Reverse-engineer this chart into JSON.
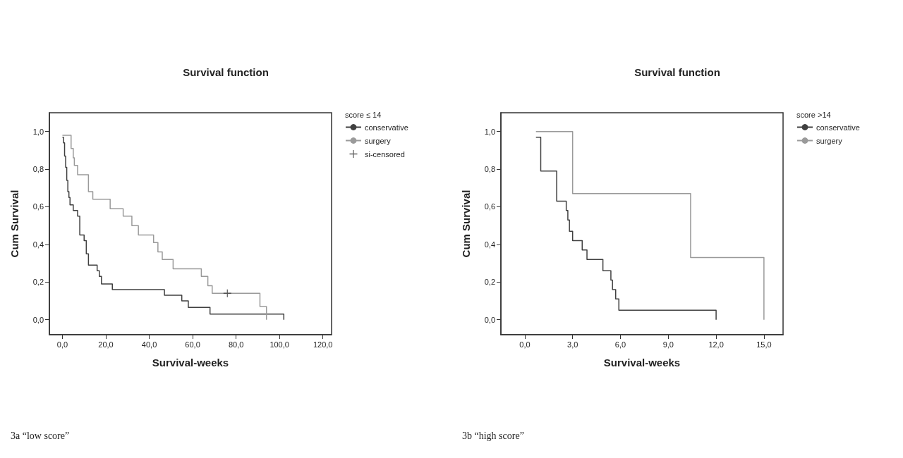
{
  "chart_data": [
    {
      "type": "step",
      "title": "Survival function",
      "xlabel": "Survival-weeks",
      "ylabel": "Cum Survival",
      "legend_title": "score ≤ 14",
      "legend": "right",
      "grid": false,
      "marker": "none",
      "line_style": "solid",
      "xlim": [
        -6,
        124
      ],
      "xticks": [
        {
          "value": 0,
          "label": "0,0"
        },
        {
          "value": 20,
          "label": "20,0"
        },
        {
          "value": 40,
          "label": "40,0"
        },
        {
          "value": 60,
          "label": "60,0"
        },
        {
          "value": 80,
          "label": "80,0"
        },
        {
          "value": 100,
          "label": "100,0"
        },
        {
          "value": 120,
          "label": "120,0"
        }
      ],
      "ylim": [
        -0.08,
        1.1
      ],
      "yticks": [
        {
          "value": 0,
          "label": "0,0"
        },
        {
          "value": 0.2,
          "label": "0,2"
        },
        {
          "value": 0.4,
          "label": "0,4"
        },
        {
          "value": 0.6,
          "label": "0,6"
        },
        {
          "value": 0.8,
          "label": "0,8"
        },
        {
          "value": 1,
          "label": "1,0"
        }
      ],
      "series": [
        {
          "name": "conservative",
          "color": "#404040",
          "x": [
            0,
            0.5,
            1,
            1.5,
            2,
            2.5,
            3,
            3.5,
            5,
            7,
            8,
            10,
            11,
            12,
            16,
            17,
            18,
            23,
            47,
            55,
            58,
            68,
            102
          ],
          "values": [
            0.97,
            0.94,
            0.87,
            0.81,
            0.74,
            0.68,
            0.65,
            0.61,
            0.58,
            0.55,
            0.45,
            0.42,
            0.35,
            0.29,
            0.26,
            0.23,
            0.19,
            0.16,
            0.13,
            0.1,
            0.065,
            0.03,
            0
          ]
        },
        {
          "name": "surgery",
          "color": "#9a9a9a",
          "x": [
            0,
            4,
            5,
            5.5,
            7,
            12,
            14,
            22,
            28,
            32,
            35,
            42,
            44,
            46,
            51,
            64,
            67,
            69,
            91,
            94
          ],
          "values": [
            0.98,
            0.91,
            0.86,
            0.82,
            0.77,
            0.68,
            0.64,
            0.59,
            0.55,
            0.5,
            0.45,
            0.41,
            0.36,
            0.32,
            0.27,
            0.23,
            0.18,
            0.14,
            0.07,
            0
          ]
        },
        {
          "name": "si-censored",
          "type": "scatter",
          "marker": "cross",
          "color": "#404040",
          "x": [
            76
          ],
          "values": [
            0.14
          ]
        }
      ],
      "annotations": [
        "3a “low score”"
      ]
    },
    {
      "type": "step",
      "title": "Survival function",
      "xlabel": "Survival-weeks",
      "ylabel": "Cum Survival",
      "legend_title": "score >14",
      "legend": "right",
      "grid": false,
      "marker": "none",
      "line_style": "solid",
      "xlim": [
        -1.5,
        16.2
      ],
      "xticks": [
        {
          "value": 0,
          "label": "0,0"
        },
        {
          "value": 3,
          "label": "3,0"
        },
        {
          "value": 6,
          "label": "6,0"
        },
        {
          "value": 9,
          "label": "9,0"
        },
        {
          "value": 12,
          "label": "12,0"
        },
        {
          "value": 15,
          "label": "15,0"
        }
      ],
      "ylim": [
        -0.08,
        1.1
      ],
      "yticks": [
        {
          "value": 0,
          "label": "0,0"
        },
        {
          "value": 0.2,
          "label": "0,2"
        },
        {
          "value": 0.4,
          "label": "0,4"
        },
        {
          "value": 0.6,
          "label": "0,6"
        },
        {
          "value": 0.8,
          "label": "0,8"
        },
        {
          "value": 1,
          "label": "1,0"
        }
      ],
      "series": [
        {
          "name": "conservative",
          "color": "#404040",
          "x": [
            0.7,
            1,
            2,
            2.6,
            2.7,
            2.8,
            3,
            3.6,
            3.9,
            4.9,
            5.4,
            5.5,
            5.7,
            5.9,
            12
          ],
          "values": [
            0.97,
            0.79,
            0.63,
            0.58,
            0.53,
            0.47,
            0.42,
            0.37,
            0.32,
            0.26,
            0.21,
            0.16,
            0.11,
            0.05,
            0
          ]
        },
        {
          "name": "surgery",
          "color": "#9a9a9a",
          "x": [
            0.7,
            3,
            10.4,
            15
          ],
          "values": [
            1,
            0.67,
            0.33,
            0
          ]
        }
      ],
      "annotations": [
        "3b “high score”"
      ]
    }
  ]
}
